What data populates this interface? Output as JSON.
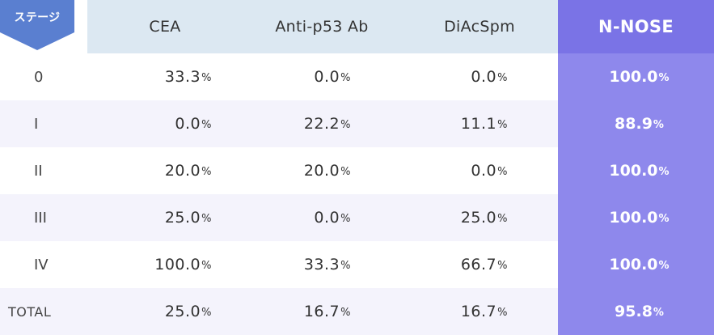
{
  "chart_data": {
    "type": "table",
    "title": "",
    "stage_header": "ステージ",
    "columns": [
      "CEA",
      "Anti-p53 Ab",
      "DiAcSpm",
      "N-NOSE"
    ],
    "unit": "%",
    "rows": [
      {
        "stage": "0",
        "values": [
          "33.3",
          "0.0",
          "0.0",
          "100.0"
        ]
      },
      {
        "stage": "I",
        "values": [
          "0.0",
          "22.2",
          "11.1",
          "88.9"
        ]
      },
      {
        "stage": "II",
        "values": [
          "20.0",
          "20.0",
          "0.0",
          "100.0"
        ]
      },
      {
        "stage": "III",
        "values": [
          "25.0",
          "0.0",
          "25.0",
          "100.0"
        ]
      },
      {
        "stage": "IV",
        "values": [
          "100.0",
          "33.3",
          "66.7",
          "100.0"
        ]
      },
      {
        "stage": "TOTAL",
        "values": [
          "25.0",
          "16.7",
          "16.7",
          "95.8"
        ]
      }
    ],
    "highlight_column": "N-NOSE",
    "colors": {
      "header_bg": "#dce8f2",
      "highlight_header": "#7a73e6",
      "highlight_cells": "#8e88ec",
      "stage_badge": "#5a7fd0",
      "shaded_row": "#f4f3fc"
    }
  }
}
